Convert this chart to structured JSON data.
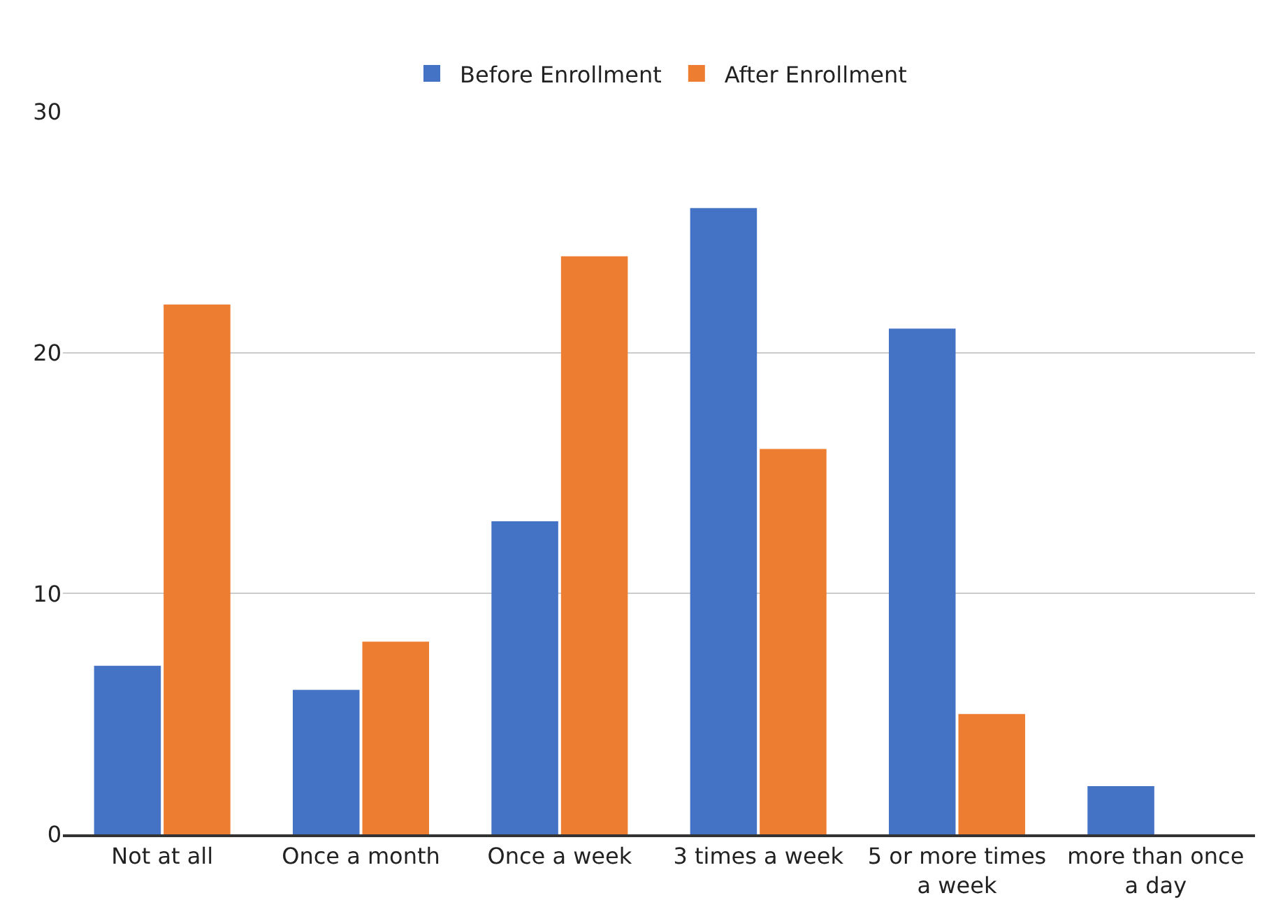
{
  "chart_data": {
    "type": "bar",
    "categories": [
      "Not at all",
      "Once a month",
      "Once a week",
      "3 times a week",
      "5 or more times a week",
      "more than once a day"
    ],
    "series": [
      {
        "name": "Before Enrollment",
        "color": "#4472c4",
        "values": [
          7,
          6,
          13,
          26,
          21,
          2
        ]
      },
      {
        "name": "After Enrollment",
        "color": "#ed7d31",
        "values": [
          22,
          8,
          24,
          16,
          5,
          0
        ]
      }
    ],
    "ylim": [
      0,
      30
    ],
    "yticks": [
      0,
      10,
      20,
      30
    ],
    "grid": "y",
    "legend": "top"
  }
}
